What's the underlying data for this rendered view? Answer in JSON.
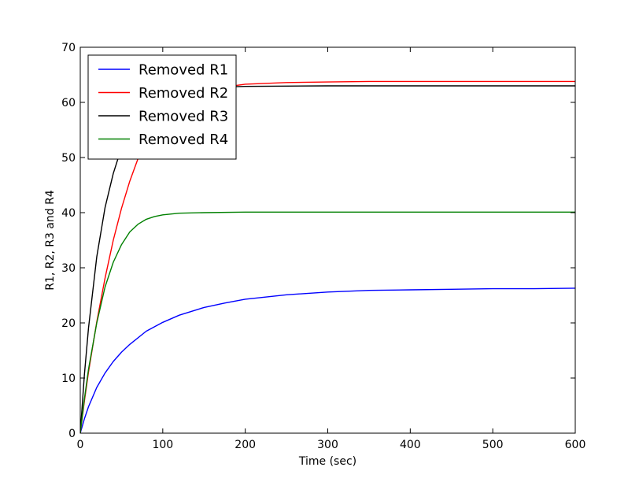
{
  "chart_data": {
    "type": "line",
    "title": "",
    "xlabel": "Time (sec)",
    "ylabel": "R1, R2, R3 and R4",
    "xlim": [
      0,
      600
    ],
    "ylim": [
      0,
      70
    ],
    "xticks": [
      0,
      100,
      200,
      300,
      400,
      500,
      600
    ],
    "yticks": [
      0,
      10,
      20,
      30,
      40,
      50,
      60,
      70
    ],
    "grid": false,
    "legend_position": "upper-left",
    "series": [
      {
        "name": "Removed R1",
        "color": "#0000ff",
        "x": [
          0,
          5,
          10,
          20,
          30,
          40,
          50,
          60,
          80,
          100,
          120,
          150,
          175,
          200,
          250,
          300,
          350,
          400,
          450,
          500,
          550,
          600
        ],
        "y": [
          0,
          2.6,
          4.8,
          8.3,
          10.9,
          13.0,
          14.7,
          16.1,
          18.5,
          20.1,
          21.4,
          22.8,
          23.6,
          24.3,
          25.1,
          25.6,
          25.9,
          26.0,
          26.1,
          26.2,
          26.2,
          26.3
        ]
      },
      {
        "name": "Removed R2",
        "color": "#ff0000",
        "x": [
          0,
          5,
          10,
          20,
          30,
          40,
          50,
          60,
          70,
          80,
          90,
          100,
          120,
          150,
          175,
          200,
          250,
          300,
          350,
          400,
          500,
          600
        ],
        "y": [
          0,
          5.8,
          11.1,
          20.2,
          28.1,
          35.0,
          40.8,
          45.7,
          49.8,
          53.1,
          55.6,
          57.6,
          60.1,
          62.0,
          62.8,
          63.3,
          63.6,
          63.7,
          63.8,
          63.8,
          63.8,
          63.8
        ]
      },
      {
        "name": "Removed R3",
        "color": "#000000",
        "x": [
          0,
          5,
          10,
          20,
          30,
          40,
          50,
          60,
          70,
          80,
          90,
          100,
          120,
          150,
          200,
          300,
          400,
          500,
          600
        ],
        "y": [
          0,
          10.6,
          19.1,
          32.0,
          40.9,
          47.1,
          51.8,
          55.1,
          57.6,
          59.3,
          60.5,
          61.3,
          62.2,
          62.7,
          62.9,
          63.0,
          63.0,
          63.0,
          63.0
        ]
      },
      {
        "name": "Removed R4",
        "color": "#008000",
        "x": [
          0,
          5,
          10,
          20,
          30,
          40,
          50,
          60,
          70,
          80,
          90,
          100,
          120,
          150,
          200,
          300,
          400,
          500,
          600
        ],
        "y": [
          0,
          6.2,
          11.6,
          20.0,
          26.5,
          31.0,
          34.2,
          36.5,
          37.9,
          38.8,
          39.3,
          39.6,
          39.9,
          40.0,
          40.1,
          40.1,
          40.1,
          40.1,
          40.1
        ]
      }
    ]
  }
}
